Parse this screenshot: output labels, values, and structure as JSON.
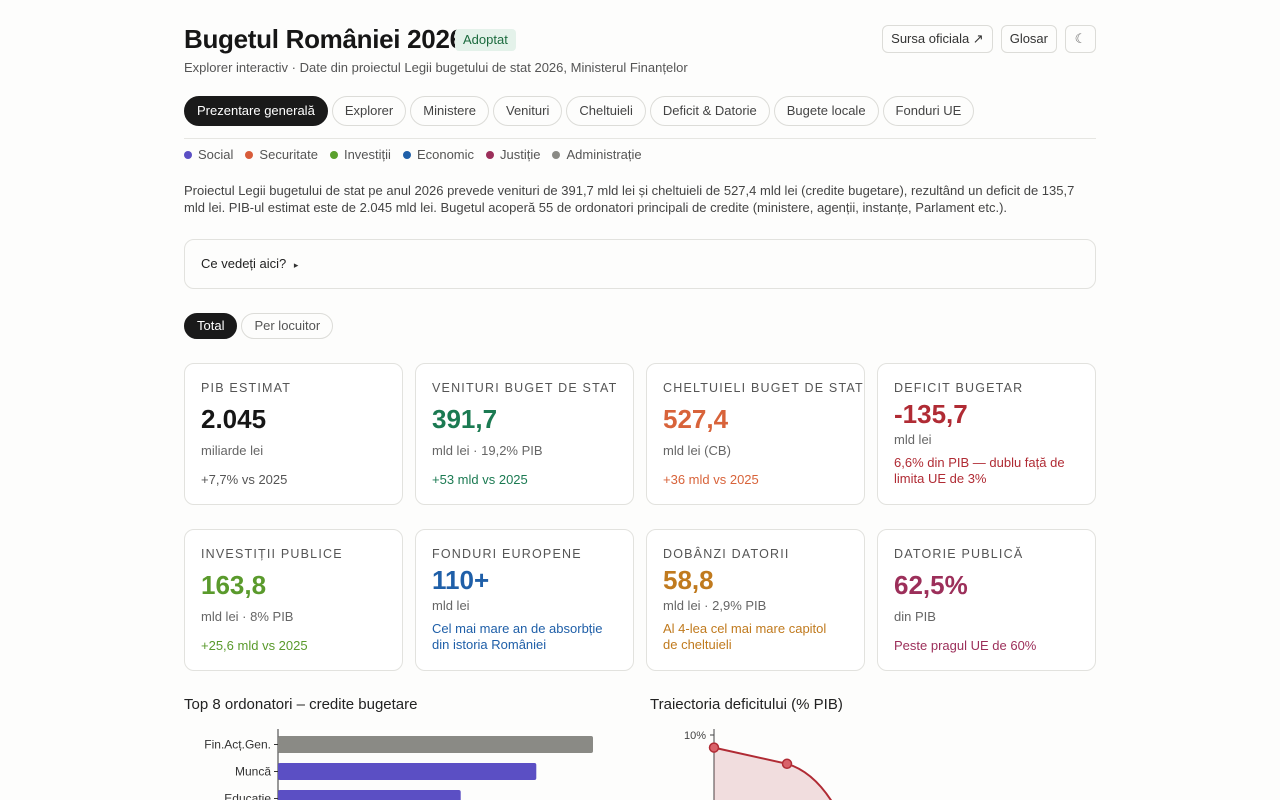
{
  "header": {
    "title": "Bugetul României 2026",
    "badge": "Adoptat",
    "subtitle": "Explorer interactiv · Date din proiectul Legii bugetului de stat 2026, Ministerul Finanțelor",
    "buttons": {
      "source": "Sursa oficiala ↗",
      "glossary": "Glosar",
      "theme": "☾"
    }
  },
  "tabs": [
    "Prezentare generală",
    "Explorer",
    "Ministere",
    "Venituri",
    "Cheltuieli",
    "Deficit & Datorie",
    "Bugete locale",
    "Fonduri UE"
  ],
  "legend": [
    {
      "label": "Social",
      "color": "#5b4fc4"
    },
    {
      "label": "Securitate",
      "color": "#d85c3a"
    },
    {
      "label": "Investiții",
      "color": "#5aa02c"
    },
    {
      "label": "Economic",
      "color": "#1f5fa8"
    },
    {
      "label": "Justiție",
      "color": "#9c2f5a"
    },
    {
      "label": "Administrație",
      "color": "#8a8a85"
    }
  ],
  "description": "Proiectul Legii bugetului de stat pe anul 2026 prevede venituri de 391,7 mld lei și cheltuieli de 527,4 mld lei (credite bugetare), rezultând un deficit de 135,7 mld lei. PIB-ul estimat este de 2.045 mld lei. Bugetul acoperă 55 de ordonatori principali de credite (ministere, agenții, instanțe, Parlament etc.).",
  "expander": {
    "label": "Ce vedeți aici?",
    "arrow": "▸"
  },
  "view_toggle": {
    "total": "Total",
    "per_capita": "Per locuitor"
  },
  "cards": [
    {
      "label": "PIB ESTIMAT",
      "value": "2.045",
      "unit": "miliarde lei",
      "note": "+7,7% vs 2025",
      "value_color": "#161616",
      "note_color": "#555555"
    },
    {
      "label": "VENITURI BUGET DE STAT",
      "value": "391,7",
      "unit": "mld lei · 19,2% PIB",
      "note": "+53 mld vs 2025",
      "value_color": "#1b7a52",
      "note_color": "#1b7a52"
    },
    {
      "label": "CHELTUIELI BUGET DE STAT",
      "value": "527,4",
      "unit": "mld lei (CB)",
      "note": "+36 mld vs 2025",
      "value_color": "#d8633a",
      "note_color": "#d8633a"
    },
    {
      "label": "DEFICIT BUGETAR",
      "value": "-135,7",
      "unit": "mld lei",
      "note": "6,6% din PIB — dublu față de limita UE de 3%",
      "value_color": "#b02b34",
      "note_color": "#b02b34"
    },
    {
      "label": "INVESTIȚII PUBLICE",
      "value": "163,8",
      "unit": "mld lei · 8% PIB",
      "note": "+25,6 mld vs 2025",
      "value_color": "#5a9a2c",
      "note_color": "#5a9a2c"
    },
    {
      "label": "FONDURI EUROPENE",
      "value": "110+",
      "unit": "mld lei",
      "note": "Cel mai mare an de absorbție din istoria României",
      "value_color": "#1f5fa8",
      "note_color": "#1f5fa8"
    },
    {
      "label": "DOBÂNZI DATORII",
      "value": "58,8",
      "unit": "mld lei · 2,9% PIB",
      "note": "Al 4-lea cel mai mare capitol de cheltuieli",
      "value_color": "#c07a1e",
      "note_color": "#c07a1e"
    },
    {
      "label": "DATORIE PUBLICĂ",
      "value": "62,5%",
      "unit": "din PIB",
      "note": "Peste pragul UE de 60%",
      "value_color": "#9c2f5a",
      "note_color": "#9c2f5a"
    }
  ],
  "charts": {
    "top_spenders_title": "Top 8 ordonatori – credite bugetare",
    "deficit_title": "Traiectoria deficitului (% PIB)"
  },
  "chart_data": [
    {
      "type": "bar",
      "orientation": "horizontal",
      "title": "Top 8 ordonatori – credite bugetare",
      "categories": [
        "Fin.Acț.Gen.",
        "Muncă",
        "Educație"
      ],
      "values": [
        100,
        82,
        58
      ],
      "colors": [
        "#8a8a85",
        "#5b4fc4",
        "#5b4fc4"
      ]
    },
    {
      "type": "area",
      "title": "Traiectoria deficitului (% PIB)",
      "y_ticks": [
        "10%"
      ],
      "ylim": [
        0,
        10
      ],
      "points": [
        9.3,
        8.4
      ],
      "color": "#b02b34"
    }
  ]
}
